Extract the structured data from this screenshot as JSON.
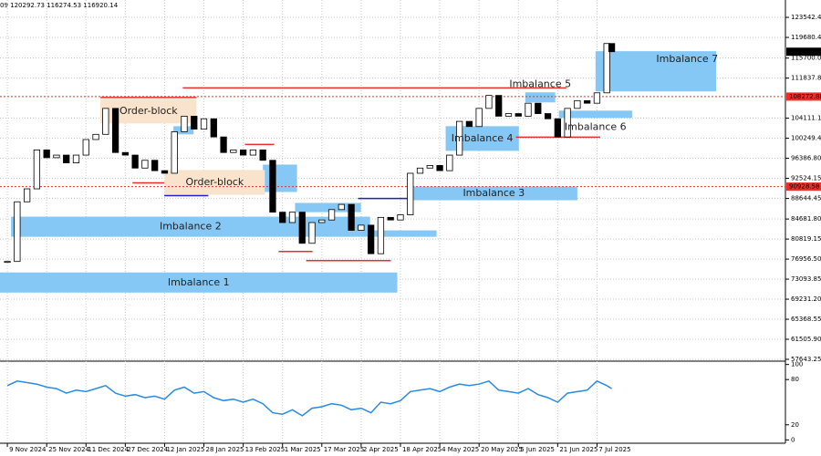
{
  "chart_data": [
    {
      "type": "candlestick",
      "header": "09 120292.73 116274.53 116920.14",
      "x": [
        0,
        4,
        8,
        12,
        16,
        20,
        24,
        28,
        32,
        36,
        40,
        44,
        48,
        52,
        56,
        60,
        64,
        68,
        72,
        76,
        80,
        84,
        88,
        92,
        96,
        100,
        104,
        108,
        112,
        116,
        120,
        124,
        128,
        132,
        136,
        140,
        144,
        148,
        152,
        156,
        160,
        164,
        168,
        172,
        176,
        180,
        184,
        188,
        192,
        196,
        200,
        204,
        208,
        212,
        216,
        220,
        224,
        228,
        232,
        236,
        240,
        244,
        246
      ],
      "values": [
        76500,
        88000,
        90500,
        98000,
        96500,
        97000,
        95500,
        97000,
        100000,
        101000,
        106000,
        97500,
        97000,
        94500,
        96000,
        94000,
        93500,
        101500,
        104500,
        102000,
        104000,
        100500,
        97500,
        98000,
        97000,
        98000,
        96000,
        86000,
        84000,
        86000,
        80000,
        84000,
        84500,
        86500,
        87500,
        82500,
        83500,
        78000,
        85000,
        84500,
        85500,
        93500,
        94500,
        95000,
        94000,
        97000,
        103500,
        102500,
        106000,
        108500,
        104500,
        105000,
        104500,
        107000,
        105000,
        104000,
        100500,
        106000,
        107500,
        107000,
        109000,
        118500,
        116920
      ],
      "up_color": "#ffffff",
      "down_color": "#000000",
      "xlim": [
        -3,
        316.7
      ],
      "ylim": [
        57290,
        126890
      ],
      "yticks": [
        {
          "value": 123542.4,
          "label": "123542.40"
        },
        {
          "value": 119680.4,
          "label": "119680.40"
        },
        {
          "value": 115700.05,
          "label": "115700.05"
        },
        {
          "value": 111837.8,
          "label": "111837.80"
        },
        {
          "value": 104111.1,
          "label": "104111.10"
        },
        {
          "value": 100249.45,
          "label": "100249.45"
        },
        {
          "value": 96386.8,
          "label": "96386.80"
        },
        {
          "value": 92524.15,
          "label": "92524.15"
        },
        {
          "value": 88644.45,
          "label": "88644.45"
        },
        {
          "value": 84681.8,
          "label": "84681.80"
        },
        {
          "value": 80819.15,
          "label": "80819.15"
        },
        {
          "value": 76956.5,
          "label": "76956.50"
        },
        {
          "value": 73093.85,
          "label": "73093.85"
        },
        {
          "value": 69231.2,
          "label": "69231.20"
        },
        {
          "value": 65368.55,
          "label": "65368.55"
        },
        {
          "value": 61505.9,
          "label": "61505.90"
        },
        {
          "value": 57643.25,
          "label": "57643.25"
        }
      ],
      "grid": true,
      "last_price": 116920.14,
      "levels": [
        108272.88,
        90928.58
      ],
      "level_color": "#e8302a",
      "zones": [
        {
          "label": "Imbalance 1",
          "x": [
            -3,
            158.7
          ],
          "y": [
            70506,
            74382
          ],
          "color": "#86c8f5"
        },
        {
          "label": "Imbalance 2",
          "x": [
            1.5,
            147.6
          ],
          "y": [
            81255,
            85131
          ],
          "color": "#86c8f5"
        },
        {
          "x": [
            147.6,
            174.7
          ],
          "y": [
            81255,
            82490
          ],
          "color": "#86c8f5"
        },
        {
          "label": "Imbalance 3",
          "x": [
            164,
            232
          ],
          "y": [
            88301,
            90945
          ],
          "color": "#86c8f5"
        },
        {
          "x": [
            104,
            117.9
          ],
          "y": [
            89890,
            95170
          ],
          "color": "#86c8f5"
        },
        {
          "x": [
            117.1,
            143.9
          ],
          "y": [
            86010,
            87780
          ],
          "color": "#86c8f5"
        },
        {
          "x": [
            67.6,
            75.8
          ],
          "y": [
            101000,
            102570
          ],
          "color": "#86c8f5"
        },
        {
          "label": "Imbalance 4",
          "x": [
            178.4,
            208.2
          ],
          "y": [
            97817,
            102574
          ],
          "color": "#86c8f5"
        },
        {
          "label": "Imbalance 5",
          "x": [
            210.8,
            223
          ],
          "y": [
            107156,
            109094
          ],
          "color": "#86c8f5"
        },
        {
          "label": "Imbalance 6",
          "x": [
            224.5,
            254.3
          ],
          "y": [
            104160,
            105570
          ],
          "color": "#86c8f5"
        },
        {
          "label": "Imbalance 7",
          "x": [
            239.4,
            288.5
          ],
          "y": [
            109270,
            117023
          ],
          "color": "#86c8f5"
        },
        {
          "label": "Order-block",
          "x": [
            37.9,
            77
          ],
          "y": [
            103103,
            107860
          ],
          "color": "#f9e3cc"
        },
        {
          "label": "Order-block",
          "x": [
            64,
            104.8
          ],
          "y": [
            89360,
            94117
          ],
          "color": "#f9e3cc"
        }
      ],
      "lines": [
        {
          "x": [
            37.9,
            77
          ],
          "y": 108100,
          "color": "#e8302a"
        },
        {
          "x": [
            71.4,
            227.5
          ],
          "y": 109955,
          "color": "#e8302a"
        },
        {
          "x": [
            96.7,
            108.6
          ],
          "y": 99050,
          "color": "#e8302a"
        },
        {
          "x": [
            50.9,
            63.9
          ],
          "y": 91650,
          "color": "#e8302a"
        },
        {
          "x": [
            110.4,
            124.2
          ],
          "y": 78430,
          "color": "#e8302a"
        },
        {
          "x": [
            121.6,
            156.1
          ],
          "y": 76670,
          "color": "#e8302a"
        },
        {
          "x": [
            207,
            241.3
          ],
          "y": 100460,
          "color": "#e8302a"
        },
        {
          "x": [
            63.9,
            81.8
          ],
          "y": 89180,
          "color": "#1c1cd4"
        },
        {
          "x": [
            142.7,
            164.3
          ],
          "y": 88650,
          "color": "#1c1cd4"
        }
      ]
    },
    {
      "type": "line",
      "x": [
        0,
        4,
        8,
        12,
        16,
        20,
        24,
        28,
        32,
        36,
        40,
        44,
        48,
        52,
        56,
        60,
        64,
        68,
        72,
        76,
        80,
        84,
        88,
        92,
        96,
        100,
        104,
        108,
        112,
        116,
        120,
        124,
        128,
        132,
        136,
        140,
        144,
        148,
        152,
        156,
        160,
        164,
        168,
        172,
        176,
        180,
        184,
        188,
        192,
        196,
        200,
        204,
        208,
        212,
        216,
        220,
        224,
        228,
        232,
        236,
        240,
        244,
        246
      ],
      "values": [
        72,
        78,
        76,
        74,
        70,
        68,
        62,
        66,
        64,
        68,
        72,
        62,
        58,
        60,
        56,
        58,
        54,
        66,
        70,
        62,
        64,
        56,
        52,
        54,
        50,
        54,
        48,
        36,
        34,
        40,
        32,
        42,
        44,
        48,
        46,
        40,
        42,
        36,
        50,
        48,
        52,
        64,
        66,
        68,
        64,
        70,
        74,
        72,
        74,
        78,
        66,
        64,
        62,
        68,
        60,
        56,
        50,
        62,
        64,
        66,
        78,
        72,
        68
      ],
      "color": "#2a8be0",
      "xlim": [
        -3,
        316.7
      ],
      "ylim": [
        -2,
        102
      ],
      "yticks": [
        100,
        80,
        20,
        0
      ],
      "xticks": [
        {
          "value": 0,
          "label": "9 Nov 2024"
        },
        {
          "value": 16,
          "label": "25 Nov 2024"
        },
        {
          "value": 32,
          "label": "11 Dec 2024"
        },
        {
          "value": 48,
          "label": "27 Dec 2024"
        },
        {
          "value": 64,
          "label": "12 Jan 2025"
        },
        {
          "value": 80,
          "label": "28 Jan 2025"
        },
        {
          "value": 96,
          "label": "13 Feb 2025"
        },
        {
          "value": 112,
          "label": "1 Mar 2025"
        },
        {
          "value": 128,
          "label": "17 Mar 2025"
        },
        {
          "value": 144,
          "label": "2 Apr 2025"
        },
        {
          "value": 160,
          "label": "18 Apr 2025"
        },
        {
          "value": 176,
          "label": "4 May 2025"
        },
        {
          "value": 192,
          "label": "20 May 2025"
        },
        {
          "value": 208,
          "label": "5 Jun 2025"
        },
        {
          "value": 224,
          "label": "21 Jun 2025"
        },
        {
          "value": 240,
          "label": "7 Jul 2025"
        }
      ],
      "grid": true
    }
  ]
}
